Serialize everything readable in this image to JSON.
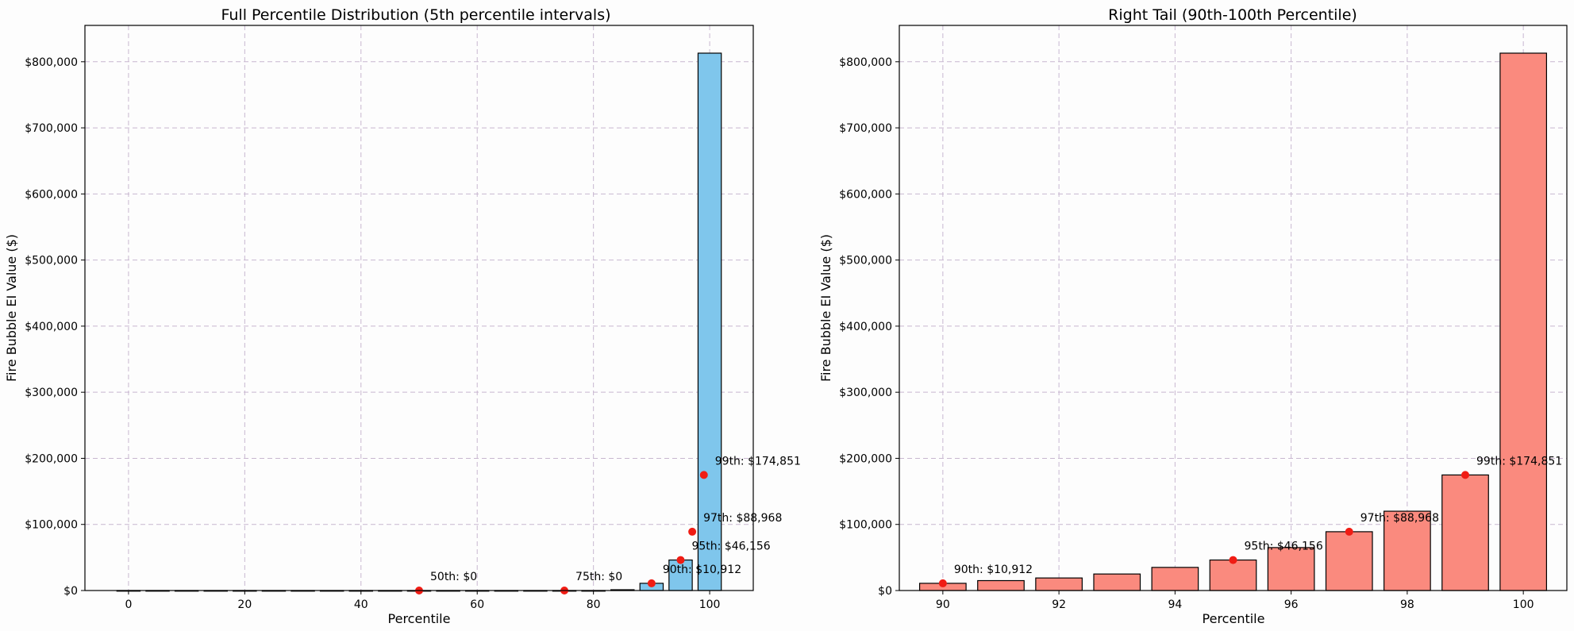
{
  "chart_data": [
    {
      "type": "bar",
      "title": "Full Percentile Distribution (5th percentile intervals)",
      "xlabel": "Percentile",
      "ylabel": "Fire Bubble EI Value ($)",
      "xlim": [
        -7.5,
        107.5
      ],
      "ylim": [
        0,
        855000
      ],
      "xticks": [
        0,
        20,
        40,
        60,
        80,
        100
      ],
      "yticks": [
        0,
        100000,
        200000,
        300000,
        400000,
        500000,
        600000,
        700000,
        800000
      ],
      "ytick_labels": [
        "$0",
        "$100,000",
        "$200,000",
        "$300,000",
        "$400,000",
        "$500,000",
        "$600,000",
        "$700,000",
        "$800,000"
      ],
      "bar_color": "#7fc6ec",
      "bar_width": 4,
      "x": [
        0,
        5,
        10,
        15,
        20,
        25,
        30,
        35,
        40,
        45,
        50,
        55,
        60,
        65,
        70,
        75,
        80,
        85,
        90,
        95,
        100
      ],
      "values": [
        0,
        0,
        0,
        0,
        0,
        0,
        0,
        0,
        0,
        0,
        0,
        0,
        0,
        0,
        0,
        0,
        0,
        1200,
        10912,
        46156,
        813000
      ],
      "markers": [
        {
          "x": 50,
          "y": 0,
          "label": "50th: $0"
        },
        {
          "x": 75,
          "y": 0,
          "label": "75th: $0"
        },
        {
          "x": 90,
          "y": 10912,
          "label": "90th: $10,912"
        },
        {
          "x": 95,
          "y": 46156,
          "label": "95th: $46,156"
        },
        {
          "x": 97,
          "y": 88968,
          "label": "97th: $88,968"
        },
        {
          "x": 99,
          "y": 174851,
          "label": "99th: $174,851"
        }
      ],
      "grid": true
    },
    {
      "type": "bar",
      "title": "Right Tail (90th-100th Percentile)",
      "xlabel": "Percentile",
      "ylabel": "Fire Bubble EI Value ($)",
      "xlim": [
        89.25,
        100.75
      ],
      "ylim": [
        0,
        855000
      ],
      "xticks": [
        90,
        92,
        94,
        96,
        98,
        100
      ],
      "yticks": [
        0,
        100000,
        200000,
        300000,
        400000,
        500000,
        600000,
        700000,
        800000
      ],
      "ytick_labels": [
        "$0",
        "$100,000",
        "$200,000",
        "$300,000",
        "$400,000",
        "$500,000",
        "$600,000",
        "$700,000",
        "$800,000"
      ],
      "bar_color": "#fa8a7e",
      "bar_width": 0.8,
      "x": [
        90,
        91,
        92,
        93,
        94,
        95,
        96,
        97,
        98,
        99,
        100
      ],
      "values": [
        10912,
        15000,
        19000,
        25000,
        35000,
        46156,
        65000,
        88968,
        120000,
        174851,
        813000
      ],
      "markers": [
        {
          "x": 90,
          "y": 10912,
          "label": "90th: $10,912"
        },
        {
          "x": 95,
          "y": 46156,
          "label": "95th: $46,156"
        },
        {
          "x": 97,
          "y": 88968,
          "label": "97th: $88,968"
        },
        {
          "x": 99,
          "y": 174851,
          "label": "99th: $174,851"
        }
      ],
      "grid": true
    }
  ]
}
